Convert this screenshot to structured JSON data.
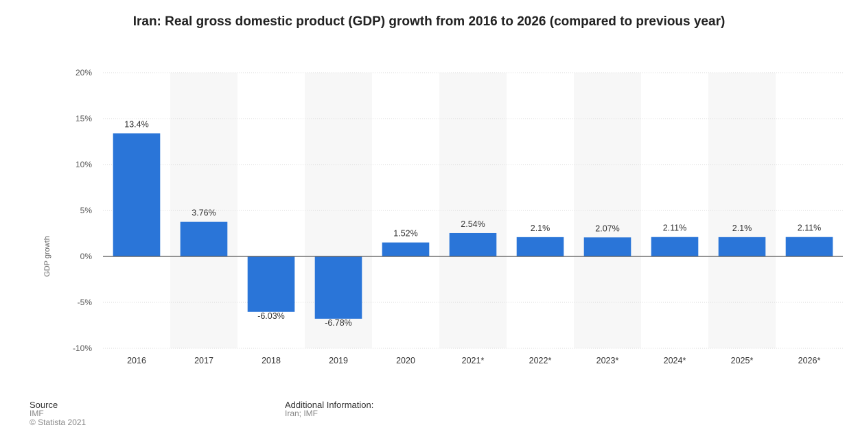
{
  "chart_data": {
    "type": "bar",
    "title": "Iran: Real gross domestic product (GDP) growth from 2016 to 2026 (compared to previous year)",
    "xlabel": "",
    "ylabel": "GDP growth",
    "categories": [
      "2016",
      "2017",
      "2018",
      "2019",
      "2020",
      "2021*",
      "2022*",
      "2023*",
      "2024*",
      "2025*",
      "2026*"
    ],
    "values": [
      13.4,
      3.76,
      -6.03,
      -6.78,
      1.52,
      2.54,
      2.1,
      2.07,
      2.11,
      2.1,
      2.11
    ],
    "value_labels": [
      "13.4%",
      "3.76%",
      "-6.03%",
      "-6.78%",
      "1.52%",
      "2.54%",
      "2.1%",
      "2.07%",
      "2.11%",
      "2.1%",
      "2.11%"
    ],
    "ylim": [
      -10,
      20
    ],
    "yticks": [
      20,
      15,
      10,
      5,
      0,
      -5,
      -10
    ],
    "ytick_labels": [
      "20%",
      "15%",
      "10%",
      "5%",
      "0%",
      "-5%",
      "-10%"
    ],
    "grid": true,
    "bar_color": "#2a75d8",
    "band_color": "#f7f7f7"
  },
  "footer": {
    "source_heading": "Source",
    "source_name": "IMF",
    "copyright": "© Statista 2021",
    "info_heading": "Additional Information:",
    "info_text": "Iran; IMF"
  }
}
